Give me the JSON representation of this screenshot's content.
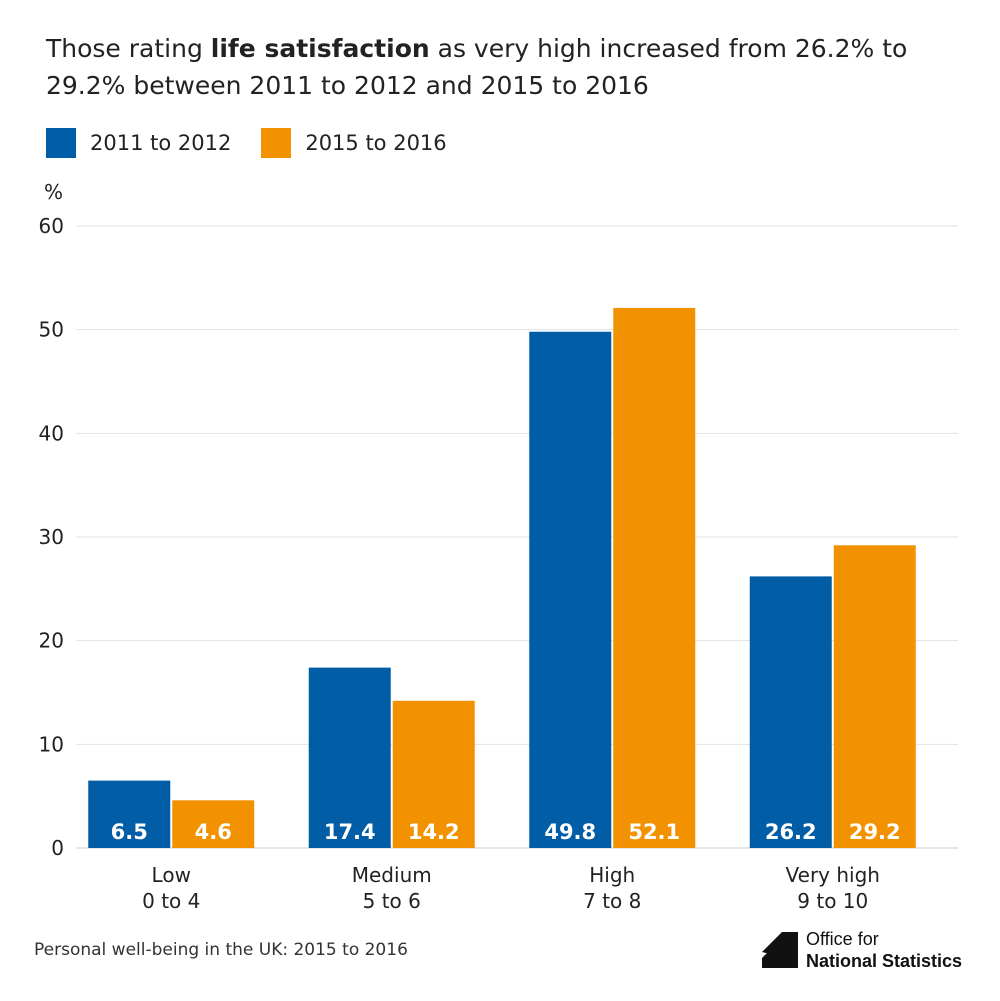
{
  "title": {
    "prefix": "Those rating ",
    "bold": "life satisfaction",
    "suffix": " as very high increased from 26.2% to 29.2% between 2011 to 2012 and 2015 to 2016"
  },
  "source": "Personal well-being in the UK: 2015 to 2016",
  "logo": {
    "line1": "Office for",
    "line2": "National Statistics"
  },
  "chart_data": {
    "type": "bar",
    "title": "Those rating life satisfaction as very high increased from 26.2% to 29.2% between 2011 to 2012 and 2015 to 2016",
    "ylabel": "%",
    "ylim": [
      0,
      60
    ],
    "yticks": [
      0,
      10,
      20,
      30,
      40,
      50,
      60
    ],
    "grid": true,
    "legend_position": "top-left",
    "categories": [
      "Low\n0 to 4",
      "Medium\n5 to 6",
      "High\n7 to 8",
      "Very high\n9 to 10"
    ],
    "series": [
      {
        "name": "2011 to 2012",
        "color": "#005da6",
        "values": [
          6.5,
          17.4,
          49.8,
          26.2
        ]
      },
      {
        "name": "2015 to 2016",
        "color": "#f39200",
        "values": [
          4.6,
          14.2,
          52.1,
          29.2
        ]
      }
    ]
  }
}
